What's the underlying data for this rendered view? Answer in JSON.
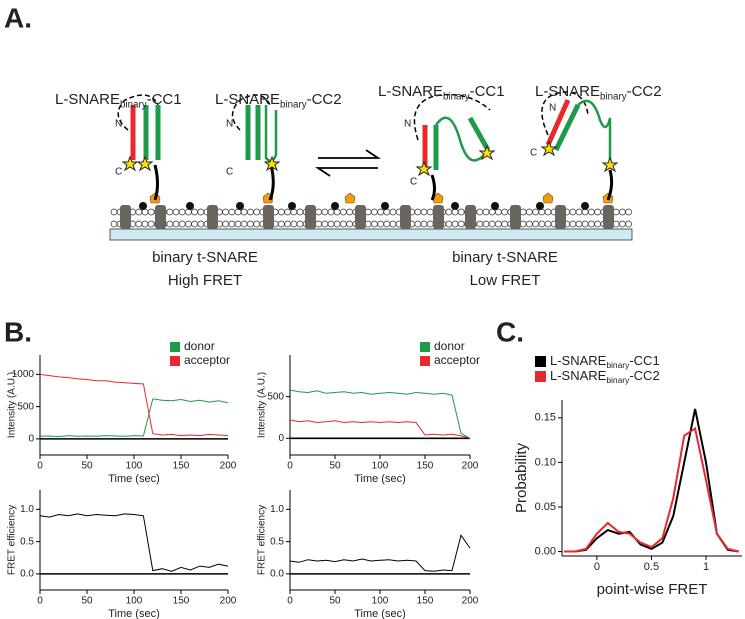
{
  "panel_labels": [
    "A.",
    "B.",
    "C."
  ],
  "diagram": {
    "constructs": [
      {
        "main": "L-SNARE",
        "sub": "binary",
        "suffix": "-CC1"
      },
      {
        "main": "L-SNARE",
        "sub": "binary",
        "suffix": "-CC2"
      },
      {
        "main": "L-SNARE",
        "sub": "binary",
        "suffix": "-CC1"
      },
      {
        "main": "L-SNARE",
        "sub": "binary",
        "suffix": "-CC2"
      }
    ],
    "termini": [
      "N",
      "C"
    ],
    "states": [
      {
        "line1": "binary t-SNARE",
        "line2": "High FRET"
      },
      {
        "line1": "binary t-SNARE",
        "line2": "Low FRET"
      }
    ]
  },
  "chart_data": [
    {
      "type": "line",
      "xlabel": "Time (sec)",
      "ylabel": "Intensity (A.U.)",
      "x": [
        0,
        10,
        20,
        30,
        40,
        50,
        60,
        70,
        80,
        90,
        100,
        110,
        120,
        130,
        140,
        150,
        160,
        170,
        180,
        190,
        200
      ],
      "series": [
        {
          "name": "donor",
          "color": "#1e9a48",
          "values": [
            40,
            45,
            35,
            50,
            40,
            45,
            40,
            50,
            45,
            40,
            50,
            45,
            620,
            600,
            590,
            610,
            580,
            600,
            570,
            590,
            560
          ]
        },
        {
          "name": "acceptor",
          "color": "#e8282c",
          "values": [
            1000,
            980,
            960,
            950,
            930,
            920,
            900,
            900,
            880,
            870,
            860,
            850,
            80,
            60,
            70,
            50,
            60,
            50,
            70,
            60,
            50
          ]
        }
      ],
      "xlim": [
        0,
        200
      ],
      "ylim": [
        -250,
        1300
      ],
      "xticks": [
        0,
        50,
        100,
        150,
        200
      ],
      "yticks": [
        0,
        500,
        1000
      ],
      "legend": "upper right"
    },
    {
      "type": "line",
      "xlabel": "Time (sec)",
      "ylabel": "Intensity (A.U.)",
      "x": [
        0,
        10,
        20,
        30,
        40,
        50,
        60,
        70,
        80,
        90,
        100,
        110,
        120,
        130,
        140,
        150,
        160,
        170,
        180,
        190,
        200
      ],
      "series": [
        {
          "name": "donor",
          "color": "#1e9a48",
          "values": [
            580,
            560,
            550,
            570,
            540,
            550,
            560,
            540,
            550,
            530,
            540,
            550,
            540,
            530,
            550,
            540,
            530,
            540,
            520,
            60,
            0
          ]
        },
        {
          "name": "acceptor",
          "color": "#e8282c",
          "values": [
            220,
            200,
            210,
            190,
            200,
            210,
            190,
            200,
            190,
            200,
            190,
            200,
            190,
            200,
            190,
            40,
            50,
            40,
            50,
            30,
            0
          ]
        }
      ],
      "xlim": [
        0,
        200
      ],
      "ylim": [
        -200,
        1000
      ],
      "xticks": [
        0,
        50,
        100,
        150,
        200
      ],
      "yticks": [
        0,
        500
      ],
      "legend": "upper right"
    },
    {
      "type": "line",
      "xlabel": "Time (sec)",
      "ylabel": "FRET efficiency",
      "x": [
        0,
        10,
        20,
        30,
        40,
        50,
        60,
        70,
        80,
        90,
        100,
        110,
        120,
        130,
        140,
        150,
        160,
        170,
        180,
        190,
        200
      ],
      "values": [
        0.9,
        0.88,
        0.92,
        0.9,
        0.93,
        0.9,
        0.92,
        0.91,
        0.9,
        0.93,
        0.92,
        0.9,
        0.05,
        0.08,
        0.04,
        0.1,
        0.06,
        0.12,
        0.1,
        0.15,
        0.12
      ],
      "color": "#000000",
      "xlim": [
        0,
        200
      ],
      "ylim": [
        -0.25,
        1.3
      ],
      "xticks": [
        0,
        50,
        100,
        150,
        200
      ],
      "yticks": [
        {
          "value": 0,
          "label": "0.0"
        },
        0.5,
        {
          "value": 1,
          "label": "1.0"
        }
      ]
    },
    {
      "type": "line",
      "xlabel": "Time (sec)",
      "ylabel": "FRET efficiency",
      "x": [
        0,
        10,
        20,
        30,
        40,
        50,
        60,
        70,
        80,
        90,
        100,
        110,
        120,
        130,
        140,
        150,
        160,
        170,
        180,
        190,
        200
      ],
      "values": [
        0.2,
        0.18,
        0.22,
        0.2,
        0.21,
        0.19,
        0.22,
        0.2,
        0.23,
        0.2,
        0.21,
        0.22,
        0.2,
        0.21,
        0.2,
        0.05,
        0.04,
        0.06,
        0.05,
        0.6,
        0.4
      ],
      "color": "#000000",
      "xlim": [
        0,
        200
      ],
      "ylim": [
        -0.25,
        1.3
      ],
      "xticks": [
        0,
        50,
        100,
        150,
        200
      ],
      "yticks": [
        {
          "value": 0,
          "label": "0.0"
        },
        0.5,
        {
          "value": 1,
          "label": "1.0"
        }
      ]
    },
    {
      "type": "line",
      "xlabel": "point-wise FRET",
      "ylabel": "Probability",
      "x": [
        -0.3,
        -0.2,
        -0.1,
        0,
        0.1,
        0.2,
        0.3,
        0.4,
        0.5,
        0.6,
        0.7,
        0.8,
        0.9,
        1,
        1.1,
        1.2,
        1.3
      ],
      "series": [
        {
          "name": "L-SNARE",
          "sub": "binary",
          "suffix": "-CC1",
          "color": "#000000",
          "values": [
            0,
            0,
            0.002,
            0.015,
            0.024,
            0.02,
            0.022,
            0.008,
            0.003,
            0.01,
            0.04,
            0.1,
            0.16,
            0.1,
            0.02,
            0.002,
            0
          ]
        },
        {
          "name": "L-SNARE",
          "sub": "binary",
          "suffix": "-CC2",
          "color": "#e8282c",
          "values": [
            0,
            0,
            0.003,
            0.02,
            0.032,
            0.022,
            0.02,
            0.01,
            0.005,
            0.015,
            0.06,
            0.13,
            0.138,
            0.08,
            0.02,
            0.003,
            0
          ]
        }
      ],
      "xlim": [
        -0.32,
        1.33
      ],
      "ylim": [
        -0.005,
        0.17
      ],
      "xticks": [
        0,
        0.5,
        1
      ],
      "yticks": [
        {
          "value": 0,
          "label": "0.00"
        },
        {
          "value": 0.05,
          "label": "0.05"
        },
        {
          "value": 0.1,
          "label": "0.10"
        },
        {
          "value": 0.15,
          "label": "0.15"
        }
      ],
      "legend": "above"
    }
  ]
}
